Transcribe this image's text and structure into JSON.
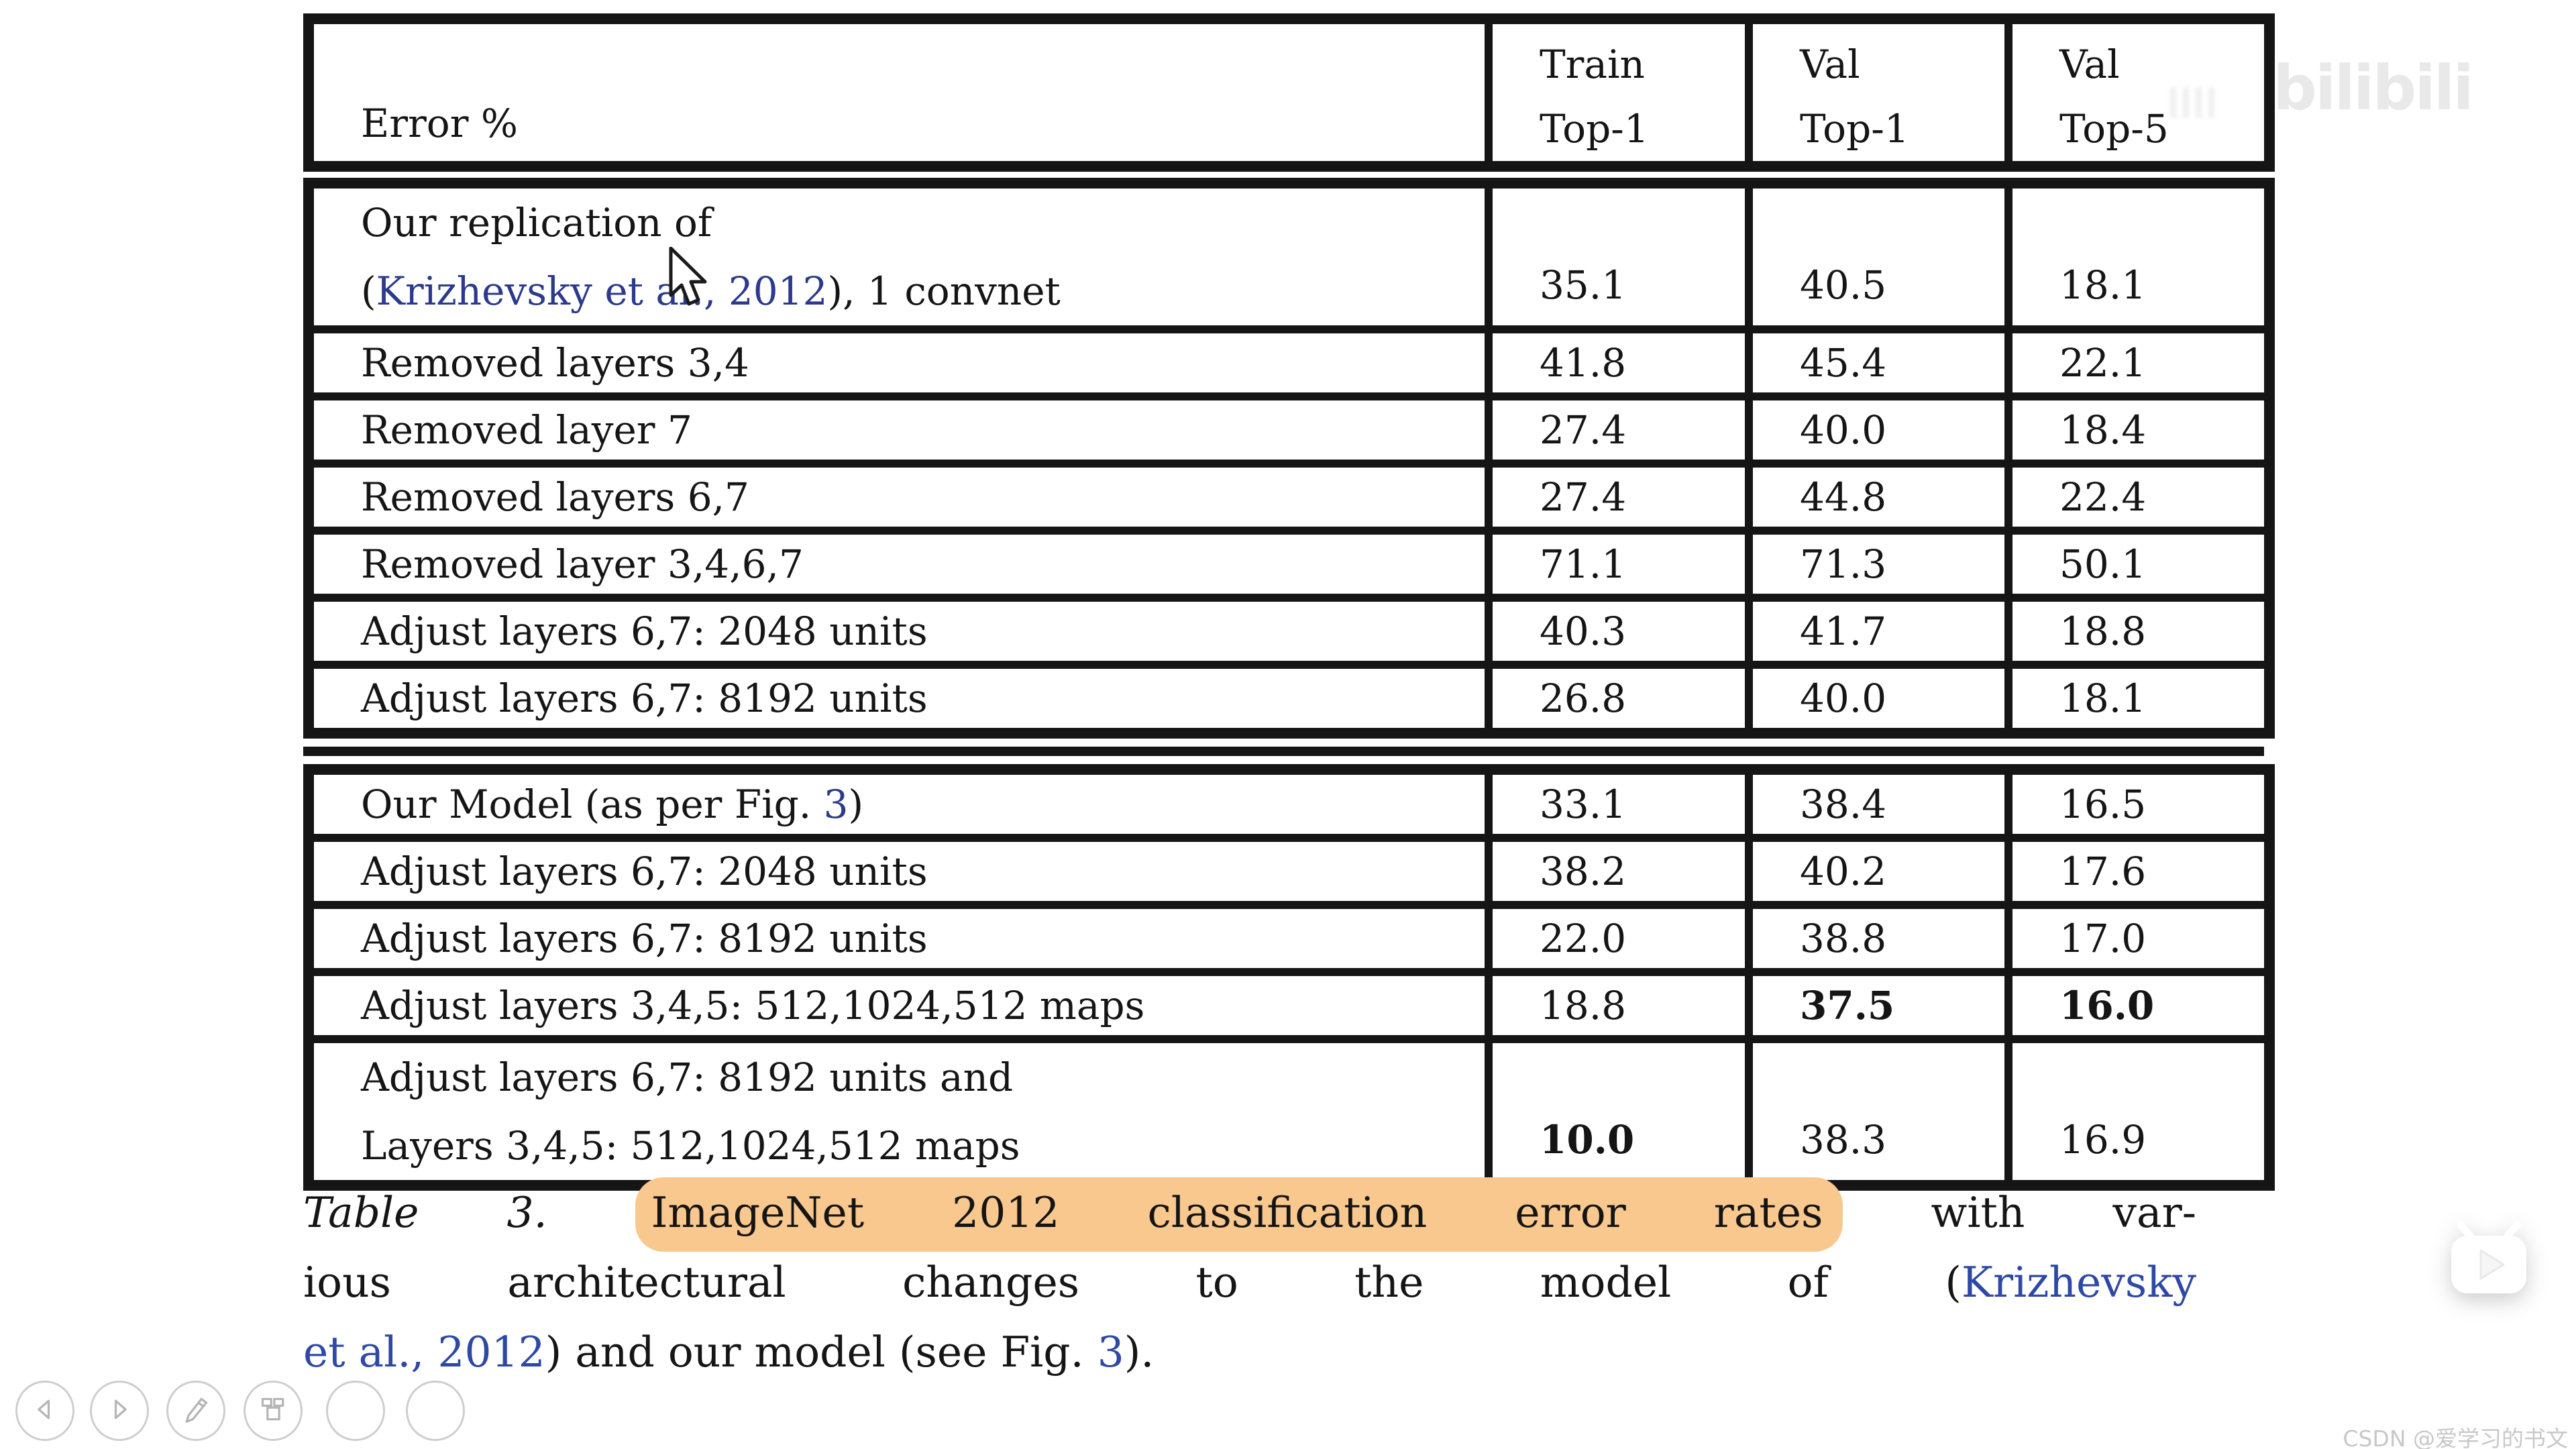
{
  "table": {
    "header": {
      "label": "Error %",
      "columns": [
        {
          "lines": [
            "Train",
            "Top-1"
          ]
        },
        {
          "lines": [
            "Val",
            "Top-1"
          ]
        },
        {
          "lines": [
            "Val",
            "Top-5"
          ]
        }
      ]
    },
    "sections": [
      {
        "rows": [
          {
            "two_line": true,
            "label_lines": [
              [
                {
                  "t": "Our replication of"
                }
              ],
              [
                {
                  "t": "("
                },
                {
                  "t": "Krizhevsky et al., 2012",
                  "s": "link"
                },
                {
                  "t": "), 1 convnet"
                }
              ]
            ],
            "values": [
              {
                "v": "35.1"
              },
              {
                "v": "40.5"
              },
              {
                "v": "18.1"
              }
            ]
          },
          {
            "label_lines": [
              [
                {
                  "t": "Removed layers 3,4"
                }
              ]
            ],
            "values": [
              {
                "v": "41.8"
              },
              {
                "v": "45.4"
              },
              {
                "v": "22.1"
              }
            ]
          },
          {
            "label_lines": [
              [
                {
                  "t": "Removed layer 7"
                }
              ]
            ],
            "values": [
              {
                "v": "27.4"
              },
              {
                "v": "40.0"
              },
              {
                "v": "18.4"
              }
            ]
          },
          {
            "label_lines": [
              [
                {
                  "t": "Removed layers 6,7"
                }
              ]
            ],
            "values": [
              {
                "v": "27.4"
              },
              {
                "v": "44.8"
              },
              {
                "v": "22.4"
              }
            ]
          },
          {
            "label_lines": [
              [
                {
                  "t": "Removed layer 3,4,6,7"
                }
              ]
            ],
            "values": [
              {
                "v": "71.1"
              },
              {
                "v": "71.3"
              },
              {
                "v": "50.1"
              }
            ]
          },
          {
            "label_lines": [
              [
                {
                  "t": "Adjust layers 6,7: 2048 units"
                }
              ]
            ],
            "values": [
              {
                "v": "40.3"
              },
              {
                "v": "41.7"
              },
              {
                "v": "18.8"
              }
            ]
          },
          {
            "label_lines": [
              [
                {
                  "t": "Adjust layers 6,7: 8192 units"
                }
              ]
            ],
            "values": [
              {
                "v": "26.8"
              },
              {
                "v": "40.0"
              },
              {
                "v": "18.1"
              }
            ]
          }
        ]
      },
      {
        "rows": [
          {
            "label_lines": [
              [
                {
                  "t": "Our Model (as per Fig. "
                },
                {
                  "t": "3",
                  "s": "link"
                },
                {
                  "t": ")"
                }
              ]
            ],
            "values": [
              {
                "v": "33.1"
              },
              {
                "v": "38.4"
              },
              {
                "v": "16.5"
              }
            ]
          },
          {
            "label_lines": [
              [
                {
                  "t": "Adjust layers 6,7: 2048 units"
                }
              ]
            ],
            "values": [
              {
                "v": "38.2"
              },
              {
                "v": "40.2"
              },
              {
                "v": "17.6"
              }
            ]
          },
          {
            "label_lines": [
              [
                {
                  "t": "Adjust layers 6,7: 8192 units"
                }
              ]
            ],
            "values": [
              {
                "v": "22.0"
              },
              {
                "v": "38.8"
              },
              {
                "v": "17.0"
              }
            ]
          },
          {
            "label_lines": [
              [
                {
                  "t": "Adjust layers 3,4,5: 512,1024,512 maps"
                }
              ]
            ],
            "values": [
              {
                "v": "18.8"
              },
              {
                "v": "37.5",
                "b": true
              },
              {
                "v": "16.0",
                "b": true
              }
            ]
          },
          {
            "two_line": true,
            "label_lines": [
              [
                {
                  "t": "Adjust layers 6,7: 8192 units and"
                }
              ],
              [
                {
                  "t": "Layers 3,4,5: 512,1024,512 maps"
                }
              ]
            ],
            "values": [
              {
                "v": "10.0",
                "b": true
              },
              {
                "v": "38.3"
              },
              {
                "v": "16.9"
              }
            ]
          }
        ]
      }
    ]
  },
  "caption": {
    "lines": [
      {
        "justify": true,
        "segments": [
          {
            "t": "Table 3.",
            "s": "italic"
          },
          {
            "t": " "
          },
          {
            "t": "ImageNet 2012 classification error rates",
            "s": "highlight"
          },
          {
            "t": " with var-"
          }
        ]
      },
      {
        "justify": true,
        "segments": [
          {
            "t": "ious architectural changes to the model of ("
          },
          {
            "t": "Krizhevsky",
            "s": "link"
          }
        ]
      },
      {
        "justify": false,
        "segments": [
          {
            "t": "et al., 2012",
            "s": "link"
          },
          {
            "t": ") and our model (see Fig. "
          },
          {
            "t": "3",
            "s": "link"
          },
          {
            "t": ")."
          }
        ]
      }
    ]
  },
  "player_controls": [
    {
      "name": "previous-page-button",
      "icon": "triangle-left"
    },
    {
      "name": "next-page-button",
      "icon": "triangle-right"
    },
    {
      "name": "pen-tool-button",
      "icon": "pencil"
    },
    {
      "name": "slides-panel-button",
      "icon": "grid"
    },
    {
      "name": "tool-button-5",
      "icon": "empty"
    },
    {
      "name": "tool-button-6",
      "icon": "empty"
    }
  ],
  "watermarks": {
    "top_right_brand": "bilibili",
    "bottom_right_text": "CSDN @爱学习的书文"
  },
  "colors": {
    "ink": "#151515",
    "table_link": "#2b3a8c",
    "caption_link": "#2e49a5",
    "highlight": "#f8c88f",
    "watermark_gray": "#e9e9e9",
    "csdn_gray": "#c8c8c8"
  }
}
